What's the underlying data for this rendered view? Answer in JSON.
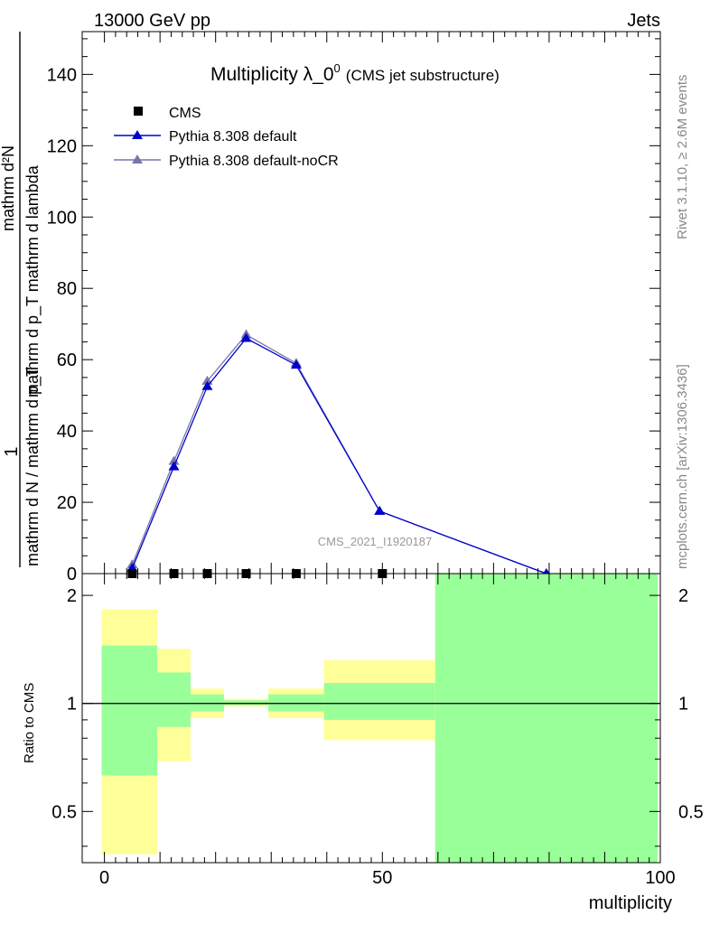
{
  "header": {
    "left": "13000 GeV pp",
    "right": "Jets"
  },
  "side": {
    "rivet": "Rivet 3.1.10, ≥ 2.6M events",
    "mcplots": "mcplots.cern.ch [arXiv:1306.3436]"
  },
  "watermark": "CMS_2021_I1920187",
  "colors": {
    "cms": "#000000",
    "pythia_default": "#0000cc",
    "pythia_nocr": "#7777aa",
    "band_green": "#99ff99",
    "band_yellow": "#ffff99"
  },
  "chart_data": [
    {
      "type": "line",
      "title": "Multiplicity λ_0",
      "title_sup": "0",
      "title_suffix": "(CMS jet substructure)",
      "ylabel_num": "1",
      "ylabel_frac_top": "mathrm d²N",
      "ylabel_frac_bottom": "mathrm d p_T mathrm d lambda",
      "ylabel_den": "mathrm d N / mathrm d p_T",
      "ylim": [
        0,
        152
      ],
      "xlim": [
        -4,
        100
      ],
      "y_ticks": [
        0,
        20,
        40,
        60,
        80,
        100,
        120,
        140
      ],
      "legend_position": "top-left",
      "series": [
        {
          "name": "CMS",
          "marker": "square",
          "x": [
            5,
            12.5,
            18.5,
            25.5,
            34.5,
            50
          ],
          "values": [
            0,
            0,
            0,
            0,
            0,
            0
          ]
        },
        {
          "name": "Pythia 8.308 default",
          "marker": "triangle",
          "x": [
            5,
            12.5,
            18.5,
            25.5,
            34.5,
            49.5,
            79.5
          ],
          "values": [
            1.5,
            30,
            52.5,
            66,
            58.5,
            17.5,
            0
          ]
        },
        {
          "name": "Pythia 8.308 default-noCR",
          "marker": "triangle",
          "x": [
            5,
            12.5,
            18.5,
            25.5,
            34.5,
            49.5,
            79.5
          ],
          "values": [
            2.5,
            31.5,
            54,
            67,
            59,
            17.5,
            0
          ]
        }
      ]
    },
    {
      "type": "area",
      "ylabel": "Ratio to CMS",
      "xlabel": "multiplicity",
      "scale": "log",
      "ylim": [
        0.36,
        2.3
      ],
      "xlim": [
        -4,
        100
      ],
      "x_ticks": [
        0,
        50,
        100
      ],
      "y_ticks": [
        0.5,
        1,
        2
      ],
      "reference_line": 1,
      "bins": [
        {
          "x0": -0.5,
          "x1": 9.5,
          "green": [
            0.63,
            1.45
          ],
          "yellow": [
            0.38,
            1.83
          ]
        },
        {
          "x0": 9.5,
          "x1": 15.5,
          "green": [
            0.86,
            1.22
          ],
          "yellow": [
            0.69,
            1.42
          ]
        },
        {
          "x0": 15.5,
          "x1": 21.5,
          "green": [
            0.95,
            1.06
          ],
          "yellow": [
            0.91,
            1.1
          ]
        },
        {
          "x0": 21.5,
          "x1": 29.5,
          "green": [
            0.99,
            1.02
          ],
          "yellow": [
            0.98,
            1.03
          ]
        },
        {
          "x0": 29.5,
          "x1": 39.5,
          "green": [
            0.95,
            1.06
          ],
          "yellow": [
            0.91,
            1.1
          ]
        },
        {
          "x0": 39.5,
          "x1": 59.5,
          "green": [
            0.9,
            1.14
          ],
          "yellow": [
            0.79,
            1.32
          ]
        },
        {
          "x0": 59.5,
          "x1": 99.5,
          "green": [
            0.36,
            2.3
          ],
          "yellow": [
            0.36,
            2.3
          ]
        }
      ]
    }
  ]
}
